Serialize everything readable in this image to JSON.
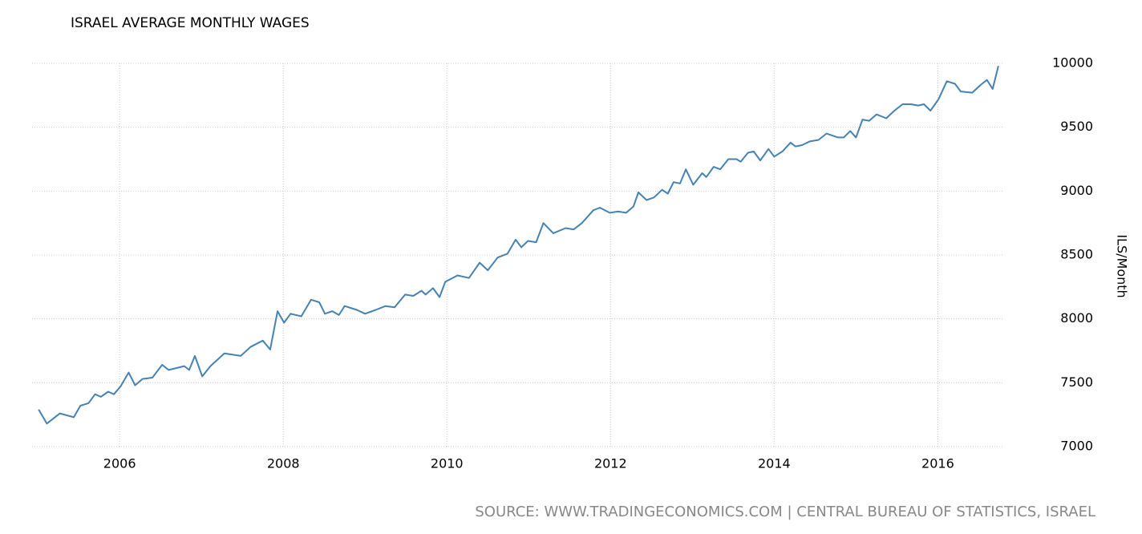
{
  "chart_data": {
    "type": "line",
    "title": "ISRAEL AVERAGE MONTHLY WAGES",
    "y_label": "ILS/Month",
    "source": "SOURCE: WWW.TRADINGECONOMICS.COM | CENTRAL BUREAU OF STATISTICS, ISRAEL",
    "color": "#4682b4",
    "grid": true,
    "x": [
      2005.01,
      2005.11,
      2005.27,
      2005.44,
      2005.52,
      2005.62,
      2005.7,
      2005.77,
      2005.86,
      2005.93,
      2006.01,
      2006.11,
      2006.19,
      2006.28,
      2006.4,
      2006.52,
      2006.6,
      2006.79,
      2006.85,
      2006.92,
      2007.01,
      2007.11,
      2007.28,
      2007.48,
      2007.6,
      2007.75,
      2007.84,
      2007.93,
      2008.01,
      2008.09,
      2008.22,
      2008.34,
      2008.44,
      2008.51,
      2008.6,
      2008.68,
      2008.75,
      2008.9,
      2009.0,
      2009.13,
      2009.25,
      2009.36,
      2009.49,
      2009.59,
      2009.69,
      2009.74,
      2009.83,
      2009.91,
      2009.98,
      2010.13,
      2010.27,
      2010.4,
      2010.5,
      2010.62,
      2010.74,
      2010.84,
      2010.91,
      2010.99,
      2011.09,
      2011.18,
      2011.3,
      2011.45,
      2011.55,
      2011.65,
      2011.79,
      2011.87,
      2011.99,
      2012.09,
      2012.19,
      2012.28,
      2012.34,
      2012.44,
      2012.53,
      2012.63,
      2012.7,
      2012.77,
      2012.85,
      2012.92,
      2013.01,
      2013.12,
      2013.17,
      2013.26,
      2013.34,
      2013.44,
      2013.54,
      2013.59,
      2013.68,
      2013.75,
      2013.83,
      2013.93,
      2014.0,
      2014.1,
      2014.2,
      2014.26,
      2014.34,
      2014.44,
      2014.54,
      2014.64,
      2014.78,
      2014.85,
      2014.93,
      2015.0,
      2015.08,
      2015.16,
      2015.25,
      2015.37,
      2015.47,
      2015.57,
      2015.67,
      2015.76,
      2015.83,
      2015.91,
      2016.01,
      2016.11,
      2016.21,
      2016.28,
      2016.42,
      2016.52,
      2016.6,
      2016.67,
      2016.74
    ],
    "values": [
      7290,
      7180,
      7260,
      7230,
      7320,
      7340,
      7410,
      7390,
      7430,
      7410,
      7470,
      7580,
      7480,
      7530,
      7540,
      7640,
      7600,
      7630,
      7600,
      7710,
      7550,
      7630,
      7730,
      7710,
      7780,
      7830,
      7760,
      8060,
      7970,
      8040,
      8020,
      8150,
      8130,
      8040,
      8060,
      8030,
      8100,
      8070,
      8040,
      8070,
      8100,
      8090,
      8190,
      8180,
      8220,
      8190,
      8240,
      8170,
      8290,
      8340,
      8320,
      8440,
      8380,
      8480,
      8510,
      8620,
      8560,
      8610,
      8600,
      8750,
      8670,
      8710,
      8700,
      8750,
      8850,
      8870,
      8830,
      8840,
      8830,
      8880,
      8990,
      8930,
      8950,
      9010,
      8980,
      9070,
      9060,
      9170,
      9050,
      9140,
      9110,
      9190,
      9170,
      9250,
      9250,
      9230,
      9300,
      9310,
      9240,
      9330,
      9270,
      9310,
      9380,
      9350,
      9360,
      9390,
      9400,
      9450,
      9420,
      9420,
      9470,
      9420,
      9560,
      9550,
      9600,
      9570,
      9630,
      9680,
      9680,
      9670,
      9680,
      9630,
      9720,
      9860,
      9840,
      9780,
      9770,
      9830,
      9870,
      9800,
      9980
    ],
    "xlim": [
      2004.93,
      2016.79
    ],
    "xticks": [
      2006,
      2008,
      2010,
      2012,
      2014,
      2016
    ],
    "ylim": [
      7000,
      10000
    ],
    "yticks": [
      7000,
      7500,
      8000,
      8500,
      9000,
      9500,
      10000
    ]
  }
}
